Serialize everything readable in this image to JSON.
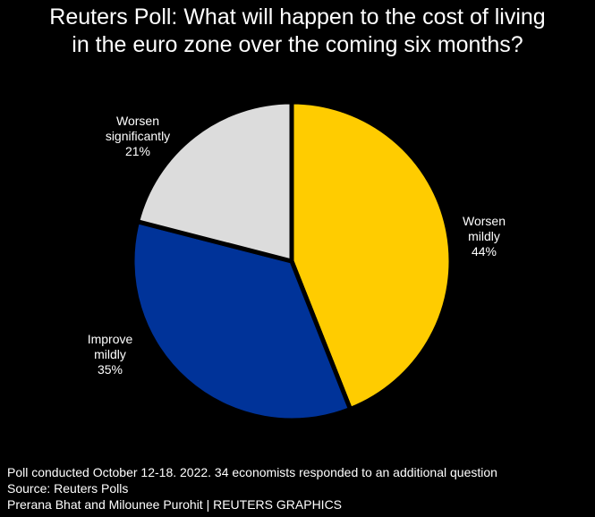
{
  "title_lines": [
    "Reuters Poll: What will happen to the cost of living",
    "in the euro zone over the coming six months?"
  ],
  "chart_data": {
    "type": "pie",
    "title": "Reuters Poll: What will happen to the cost of living in the euro zone over the coming six months?",
    "start_angle_deg": 0,
    "direction": "clockwise",
    "slices": [
      {
        "label_lines": [
          "Worsen",
          "mildly"
        ],
        "value": 44,
        "value_label": "44%",
        "color": "#ffcc00"
      },
      {
        "label_lines": [
          "Improve",
          "mildly"
        ],
        "value": 35,
        "value_label": "35%",
        "color": "#003399"
      },
      {
        "label_lines": [
          "Worsen",
          "significantly"
        ],
        "value": 21,
        "value_label": "21%",
        "color": "#dcdcdc"
      }
    ],
    "separator_color": "#000000"
  },
  "footer": {
    "note": "Poll conducted October 12-18. 2022. 34 economists responded to an additional question",
    "source": "Source: Reuters Polls",
    "credit": "Prerana Bhat and Milounee Purohit | REUTERS GRAPHICS"
  }
}
